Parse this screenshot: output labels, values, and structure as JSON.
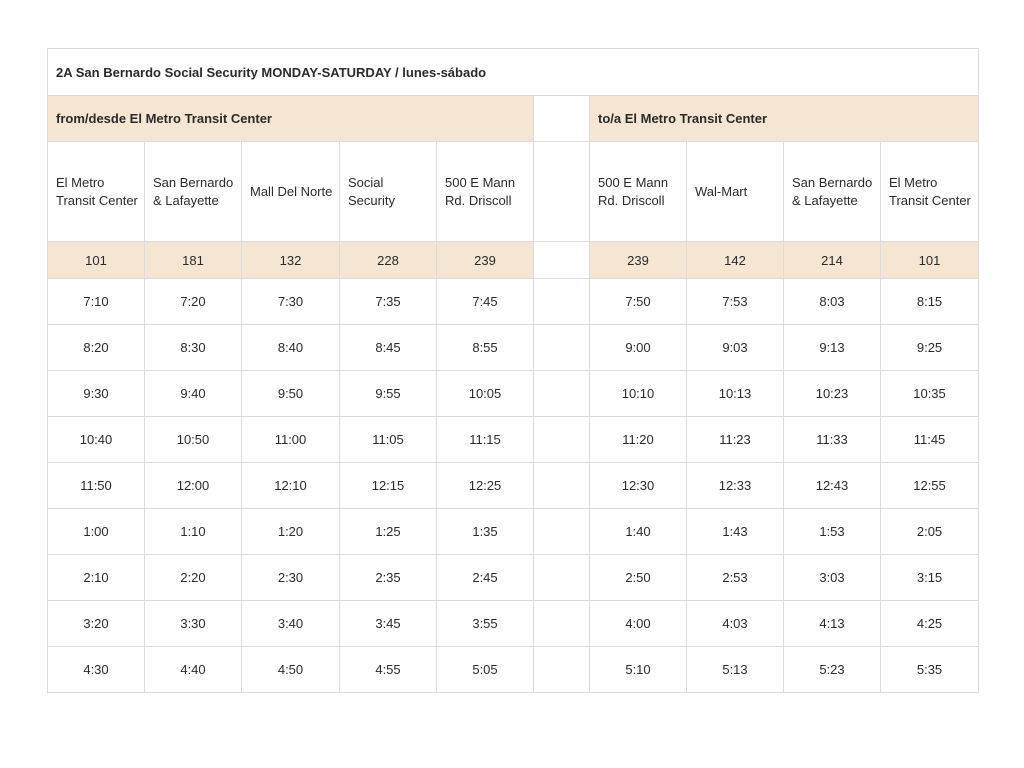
{
  "title": "2A San Bernardo Social Security MONDAY-SATURDAY / lunes-sábado",
  "from_label": "from/desde El Metro Transit Center",
  "to_label": "to/a El Metro Transit Center",
  "outbound_stops": [
    "El Metro Transit Center",
    "San Bernardo & Lafayette",
    "Mall Del Norte",
    "Social Security",
    "500 E Mann Rd. Driscoll"
  ],
  "inbound_stops": [
    "500 E Mann Rd. Driscoll",
    "Wal-Mart",
    "San Bernardo & Lafayette",
    "El Metro Transit Center"
  ],
  "outbound_codes": [
    "101",
    "181",
    "132",
    "228",
    "239"
  ],
  "inbound_codes": [
    "239",
    "142",
    "214",
    "101"
  ],
  "trips": [
    {
      "out": [
        "7:10",
        "7:20",
        "7:30",
        "7:35",
        "7:45"
      ],
      "in": [
        "7:50",
        "7:53",
        "8:03",
        "8:15"
      ]
    },
    {
      "out": [
        "8:20",
        "8:30",
        "8:40",
        "8:45",
        "8:55"
      ],
      "in": [
        "9:00",
        "9:03",
        "9:13",
        "9:25"
      ]
    },
    {
      "out": [
        "9:30",
        "9:40",
        "9:50",
        "9:55",
        "10:05"
      ],
      "in": [
        "10:10",
        "10:13",
        "10:23",
        "10:35"
      ]
    },
    {
      "out": [
        "10:40",
        "10:50",
        "11:00",
        "11:05",
        "11:15"
      ],
      "in": [
        "11:20",
        "11:23",
        "11:33",
        "11:45"
      ]
    },
    {
      "out": [
        "11:50",
        "12:00",
        "12:10",
        "12:15",
        "12:25"
      ],
      "in": [
        "12:30",
        "12:33",
        "12:43",
        "12:55"
      ]
    },
    {
      "out": [
        "1:00",
        "1:10",
        "1:20",
        "1:25",
        "1:35"
      ],
      "in": [
        "1:40",
        "1:43",
        "1:53",
        "2:05"
      ]
    },
    {
      "out": [
        "2:10",
        "2:20",
        "2:30",
        "2:35",
        "2:45"
      ],
      "in": [
        "2:50",
        "2:53",
        "3:03",
        "3:15"
      ]
    },
    {
      "out": [
        "3:20",
        "3:30",
        "3:40",
        "3:45",
        "3:55"
      ],
      "in": [
        "4:00",
        "4:03",
        "4:13",
        "4:25"
      ]
    },
    {
      "out": [
        "4:30",
        "4:40",
        "4:50",
        "4:55",
        "5:05"
      ],
      "in": [
        "5:10",
        "5:13",
        "5:23",
        "5:35"
      ]
    }
  ],
  "colors": {
    "header_band": "#f4e6d3",
    "border": "#dcdcdc"
  }
}
